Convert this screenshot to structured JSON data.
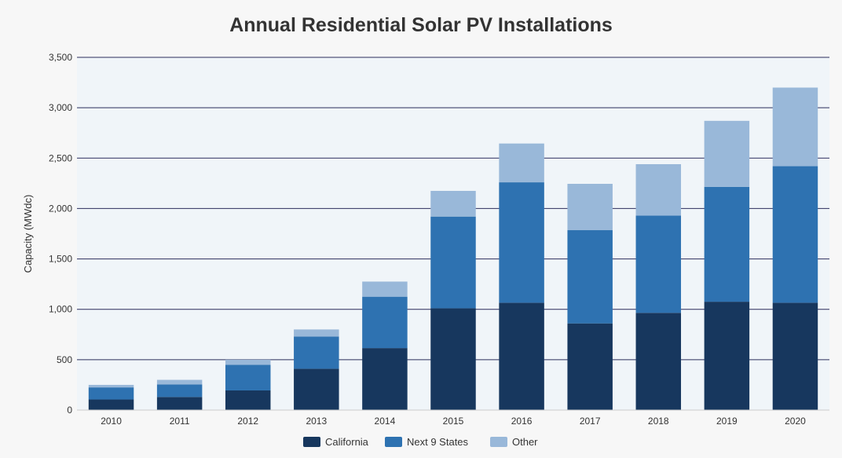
{
  "chart_data": {
    "type": "bar",
    "stacked": true,
    "title": "Annual Residential Solar PV Installations",
    "xlabel": "",
    "ylabel": "Capacity (MWdc)",
    "ylim": [
      0,
      3500
    ],
    "yticks": [
      0,
      500,
      1000,
      1500,
      2000,
      2500,
      3000,
      3500
    ],
    "ytick_labels": [
      "0",
      "500",
      "1,000",
      "1,500",
      "2,000",
      "2,500",
      "3,000",
      "3,500"
    ],
    "categories": [
      "2010",
      "2011",
      "2012",
      "2013",
      "2014",
      "2015",
      "2016",
      "2017",
      "2018",
      "2019",
      "2020"
    ],
    "series": [
      {
        "name": "California",
        "color": "#17375e",
        "values": [
          105,
          130,
          195,
          410,
          615,
          1010,
          1065,
          860,
          965,
          1075,
          1065
        ]
      },
      {
        "name": "Next 9 States",
        "color": "#2e72b1",
        "values": [
          120,
          125,
          255,
          320,
          510,
          910,
          1195,
          925,
          965,
          1140,
          1355
        ]
      },
      {
        "name": "Other",
        "color": "#99b8d9",
        "values": [
          25,
          45,
          50,
          70,
          150,
          255,
          385,
          460,
          510,
          655,
          780
        ]
      }
    ],
    "grid": true,
    "legend_position": "bottom",
    "plot_background": "#f0f5f9",
    "gridline_color": "#2b2d5c"
  }
}
